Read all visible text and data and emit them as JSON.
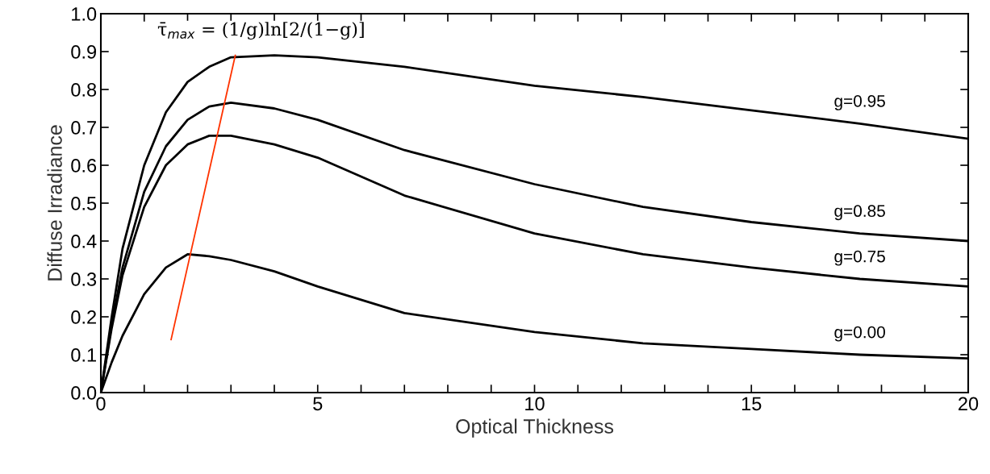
{
  "chart_data": {
    "type": "line",
    "xlabel": "Optical Thickness",
    "ylabel": "Diffuse Irradiance",
    "x": [
      0,
      0.25,
      0.5,
      1,
      1.5,
      2,
      2.5,
      3,
      4,
      5,
      7,
      10,
      12.5,
      15,
      17.5,
      20
    ],
    "series": [
      {
        "name": "g=0.95",
        "color": "#000000",
        "values": [
          0,
          0.2,
          0.38,
          0.6,
          0.74,
          0.82,
          0.86,
          0.885,
          0.89,
          0.885,
          0.86,
          0.81,
          0.78,
          0.745,
          0.71,
          0.67
        ]
      },
      {
        "name": "g=0.85",
        "color": "#000000",
        "values": [
          0,
          0.18,
          0.33,
          0.53,
          0.65,
          0.72,
          0.755,
          0.765,
          0.75,
          0.72,
          0.64,
          0.55,
          0.49,
          0.45,
          0.42,
          0.4
        ]
      },
      {
        "name": "g=0.75",
        "color": "#000000",
        "values": [
          0,
          0.17,
          0.31,
          0.49,
          0.6,
          0.655,
          0.678,
          0.678,
          0.655,
          0.62,
          0.52,
          0.42,
          0.365,
          0.33,
          0.3,
          0.28
        ]
      },
      {
        "name": "g=0.00",
        "color": "#000000",
        "values": [
          0,
          0.08,
          0.15,
          0.26,
          0.33,
          0.365,
          0.36,
          0.35,
          0.32,
          0.28,
          0.21,
          0.16,
          0.13,
          0.115,
          0.1,
          0.09
        ]
      },
      {
        "type": "line",
        "color": "#ff3300",
        "x": [
          1.62,
          3.1
        ],
        "values": [
          0.14,
          0.89
        ]
      }
    ],
    "annotations": [
      "τ̄$_{max}$ = (1/g)ln[2/(1−g)]"
    ],
    "xlim": [
      0,
      20
    ],
    "ylim": [
      0,
      1.0
    ],
    "xticks": [
      0,
      {
        "value": 1,
        "label": null
      },
      {
        "value": 2,
        "label": null
      },
      {
        "value": 3,
        "label": null
      },
      {
        "value": 4,
        "label": null
      },
      5,
      {
        "value": 6,
        "label": null
      },
      {
        "value": 7,
        "label": null
      },
      {
        "value": 8,
        "label": null
      },
      {
        "value": 9,
        "label": null
      },
      10,
      {
        "value": 11,
        "label": null
      },
      {
        "value": 12,
        "label": null
      },
      {
        "value": 13,
        "label": null
      },
      {
        "value": 14,
        "label": null
      },
      15,
      {
        "value": 16,
        "label": null
      },
      {
        "value": 17,
        "label": null
      },
      {
        "value": 18,
        "label": null
      },
      {
        "value": 19,
        "label": null
      },
      20
    ],
    "yticks": [
      {
        "value": 0,
        "label": "0.0"
      },
      0.1,
      0.2,
      0.3,
      0.4,
      0.5,
      0.6,
      0.7,
      0.8,
      0.9,
      {
        "value": 1.0,
        "label": "1.0"
      }
    ],
    "grid": false,
    "legend": false,
    "marker": "none",
    "line_style": "solid"
  }
}
